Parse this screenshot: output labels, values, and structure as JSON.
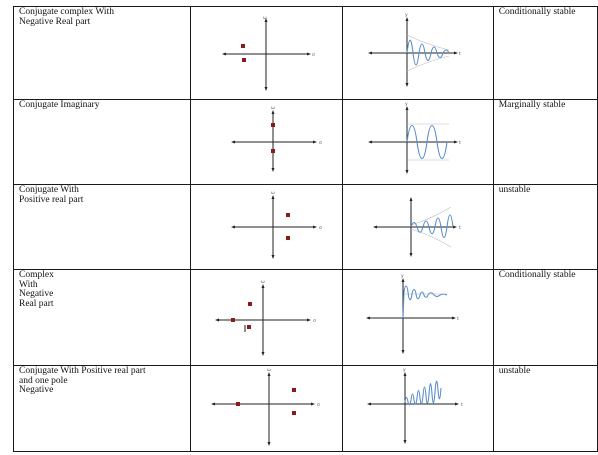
{
  "rows": [
    {
      "type": "Conjugate complex With\nNegative Real part",
      "stability": "Conditionally stable"
    },
    {
      "type": "Conjugate Imaginary",
      "stability": "Marginally stable"
    },
    {
      "type": "Conjugate With\nPositive real part",
      "stability": "unstable"
    },
    {
      "type": "Complex\nWith\nNegative\nReal part",
      "stability": "Conditionally stable"
    },
    {
      "type": "Conjugate With Positive real part\nand one pole\nNegative",
      "stability": "unstable"
    }
  ],
  "axis_labels": {
    "imag": "ω",
    "real": "σ",
    "time_y": "y",
    "time_x": "t"
  },
  "colors": {
    "pole": "#8b1a1a",
    "response_curve": "#5b8fc9"
  }
}
